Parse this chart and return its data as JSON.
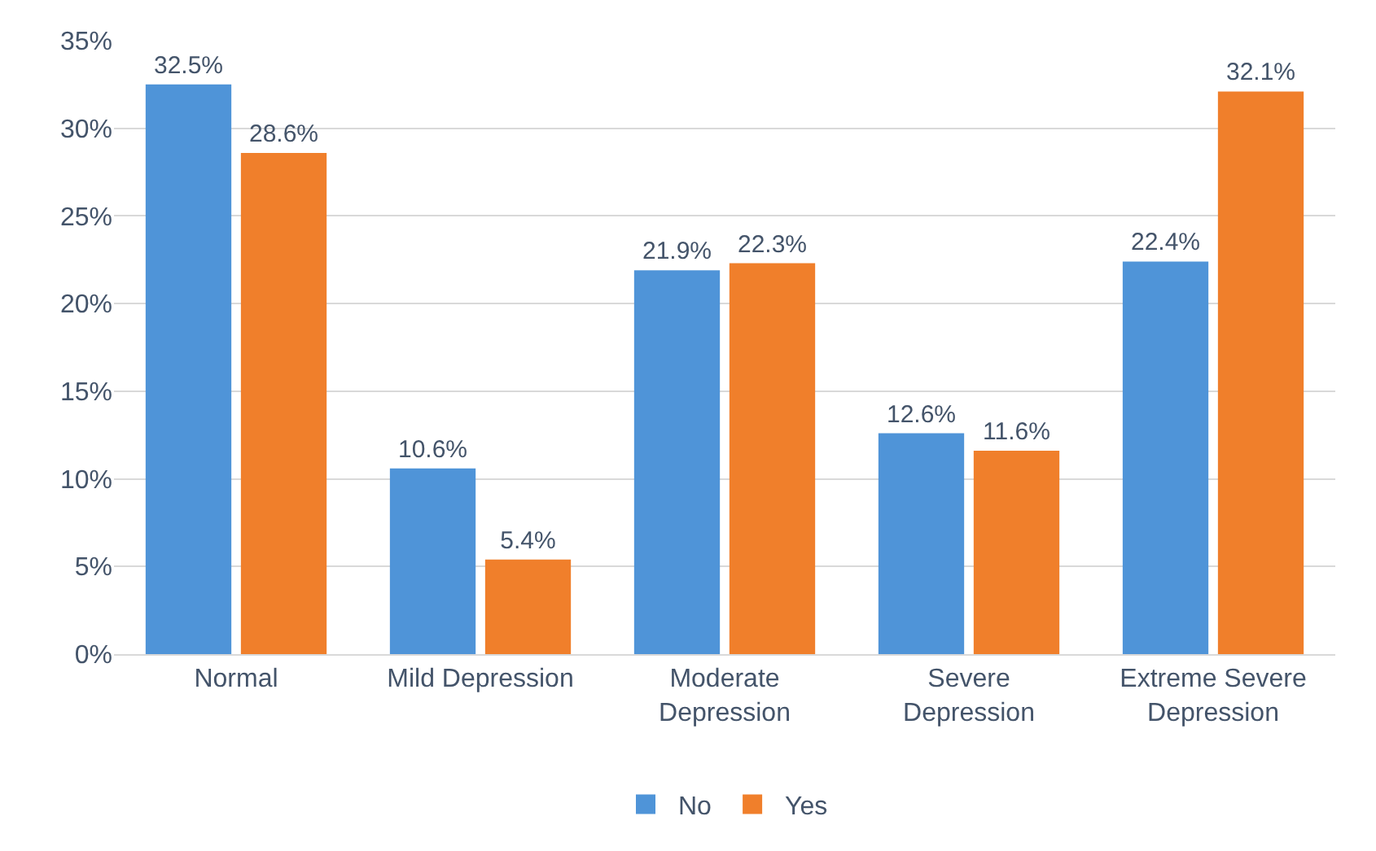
{
  "chart_data": {
    "type": "bar",
    "categories": [
      "Normal",
      "Mild Depression",
      "Moderate Depression",
      "Severe Depression",
      "Extreme Severe Depression"
    ],
    "series": [
      {
        "name": "No",
        "color": "#4f94d8",
        "values": [
          32.5,
          10.6,
          21.9,
          12.6,
          22.4
        ],
        "value_labels": [
          "32.5%",
          "10.6%",
          "21.9%",
          "12.6%",
          "22.4%"
        ]
      },
      {
        "name": "Yes",
        "color": "#f07f2b",
        "values": [
          28.6,
          5.4,
          22.3,
          11.6,
          32.1
        ],
        "value_labels": [
          "28.6%",
          "5.4%",
          "22.3%",
          "11.6%",
          "32.1%"
        ]
      }
    ],
    "ylim": [
      0,
      35
    ],
    "yticks": [
      {
        "value": 0,
        "label": "0%"
      },
      {
        "value": 5,
        "label": "5%"
      },
      {
        "value": 10,
        "label": "10%"
      },
      {
        "value": 15,
        "label": "15%"
      },
      {
        "value": 20,
        "label": "20%"
      },
      {
        "value": 25,
        "label": "25%"
      },
      {
        "value": 30,
        "label": "30%"
      },
      {
        "value": 35,
        "label": "35%"
      }
    ],
    "grid": "y",
    "legend": "bottom"
  }
}
